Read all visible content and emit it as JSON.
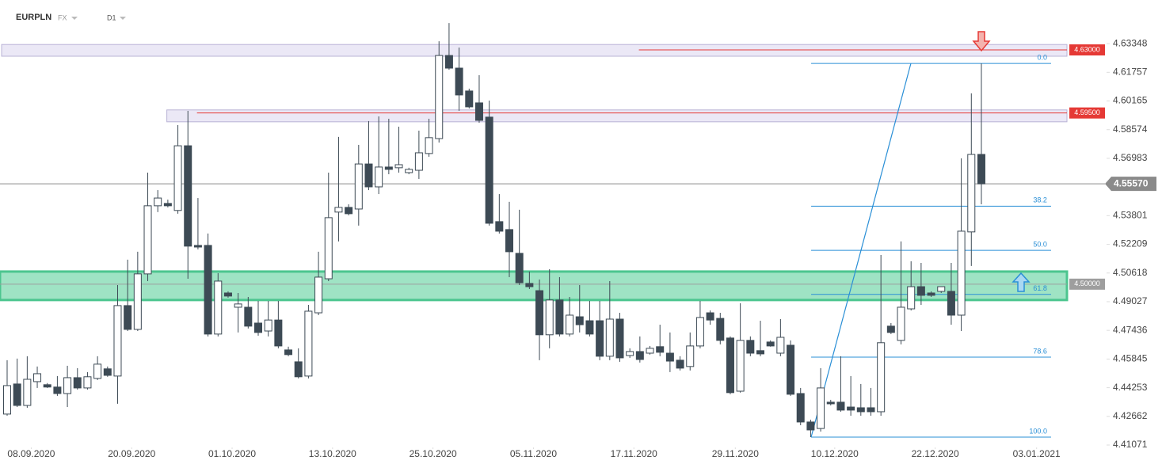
{
  "header": {
    "symbol": "EURPLN",
    "market": "FX",
    "interval": "D1"
  },
  "chart_data": {
    "type": "candlestick",
    "open": [
      4.4279,
      4.4446,
      4.4327,
      4.4459,
      4.4442,
      4.4429,
      4.4393,
      4.4481,
      4.4424,
      4.4477,
      4.453,
      4.449,
      4.4881,
      4.4749,
      4.5057,
      4.5435,
      4.5448,
      4.5409,
      4.5768,
      4.5215,
      4.5215,
      4.4723,
      4.4951,
      4.4872,
      4.4872,
      4.4784,
      4.474,
      4.4801,
      4.4635,
      4.4569,
      4.449,
      4.4841,
      4.503,
      4.54,
      4.5426,
      4.5417,
      4.5667,
      4.554,
      4.565,
      4.5646,
      4.5619,
      4.5632,
      4.5725,
      4.5808,
      4.6269,
      4.6199,
      4.6072,
      4.6006,
      4.5927,
      4.5347,
      4.5303,
      4.5171,
      4.5004,
      4.4964,
      4.4719,
      4.4912,
      4.4723,
      4.4819,
      4.4797,
      4.4797,
      4.46,
      4.4806,
      4.4604,
      4.4626,
      4.4617,
      4.4653,
      4.4617,
      4.4578,
      4.4543,
      4.4657,
      4.4841,
      4.481,
      4.4701,
      4.4406,
      4.4688,
      4.4631,
      4.4679,
      4.4617,
      4.4661,
      4.4393,
      4.4235,
      4.4199,
      4.4345,
      4.4345,
      4.4318,
      4.4314,
      4.4314,
      4.4292,
      4.4767,
      4.4688,
      4.4863,
      4.4986,
      4.4951,
      4.496,
      4.496,
      4.4828,
      4.529,
      4.572
    ],
    "high": [
      4.4578,
      4.4587,
      4.46,
      4.4543,
      4.4451,
      4.449,
      4.4547,
      4.4534,
      4.4512,
      4.46,
      4.4543,
      4.4995,
      4.5136,
      4.518,
      4.5619,
      4.5522,
      4.5469,
      4.5883,
      4.5962,
      4.5478,
      4.5281,
      4.5061,
      4.496,
      4.4951,
      4.4929,
      4.4907,
      4.4907,
      4.4907,
      4.4653,
      4.4644,
      4.4885,
      4.518,
      4.5619,
      4.5817,
      4.5443,
      4.5773,
      4.5905,
      4.5931,
      4.5918,
      4.5874,
      4.5646,
      4.5852,
      4.5918,
      4.6348,
      4.6449,
      4.6313,
      4.6085,
      4.616,
      4.6019,
      4.55,
      4.5457,
      4.5413,
      4.507,
      4.5026,
      4.5083,
      4.5039,
      4.4929,
      4.4995,
      4.4907,
      4.4907,
      4.5017,
      4.4841,
      4.4644,
      4.471,
      4.4657,
      4.4775,
      4.4732,
      4.46,
      4.4732,
      4.4907,
      4.4854,
      4.4841,
      4.471,
      4.4894,
      4.471,
      4.4797,
      4.4688,
      4.4806,
      4.4688,
      4.4424,
      4.4248,
      4.4534,
      4.4358,
      4.46,
      4.449,
      4.4446,
      4.4424,
      4.5162,
      4.4784,
      4.5237,
      4.5127,
      4.5118,
      4.496,
      4.4986,
      4.5118,
      4.5698,
      4.6059,
      4.6225
    ],
    "low": [
      4.427,
      4.4318,
      4.4314,
      4.4424,
      4.4424,
      4.438,
      4.4318,
      4.4415,
      4.4415,
      4.4468,
      4.4486,
      4.4336,
      4.474,
      4.474,
      4.5017,
      4.54,
      4.5426,
      4.5391,
      4.503,
      4.5193,
      4.471,
      4.471,
      4.4925,
      4.4732,
      4.4754,
      4.4714,
      4.471,
      4.4644,
      4.46,
      4.4477,
      4.4477,
      4.4828,
      4.5017,
      4.5237,
      4.5382,
      4.5325,
      4.5522,
      4.55,
      4.561,
      4.5619,
      4.561,
      4.5584,
      4.5707,
      4.5786,
      4.619,
      4.5962,
      4.5975,
      4.5896,
      4.5325,
      4.5281,
      4.5039,
      4.4995,
      4.4973,
      4.4578,
      4.4644,
      4.471,
      4.471,
      4.4732,
      4.471,
      4.4578,
      4.4578,
      4.4569,
      4.4591,
      4.4565,
      4.4609,
      4.46,
      4.4512,
      4.4521,
      4.4521,
      4.4644,
      4.4775,
      4.4666,
      4.4389,
      4.4398,
      4.46,
      4.46,
      4.4653,
      4.46,
      4.438,
      4.4217,
      4.4151,
      4.4182,
      4.4327,
      4.4292,
      4.427,
      4.427,
      4.427,
      4.427,
      4.4723,
      4.4666,
      4.4854,
      4.4885,
      4.4929,
      4.4951,
      4.4775,
      4.474,
      4.5101,
      4.5443
    ],
    "close": [
      4.4437,
      4.4327,
      4.4472,
      4.4503,
      4.4429,
      4.4393,
      4.4481,
      4.4424,
      4.4486,
      4.4556,
      4.4494,
      4.4881,
      4.4749,
      4.5057,
      4.5435,
      4.5478,
      4.5435,
      4.5768,
      4.5211,
      4.5206,
      4.4723,
      4.5017,
      4.4934,
      4.489,
      4.4767,
      4.4732,
      4.4801,
      4.4657,
      4.4609,
      4.4486,
      4.485,
      4.5039,
      4.5369,
      4.5426,
      4.5391,
      4.5667,
      4.554,
      4.565,
      4.5637,
      4.5663,
      4.5637,
      4.5729,
      4.5813,
      4.6269,
      4.6199,
      4.605,
      4.5984,
      4.5909,
      4.5338,
      4.5294,
      4.518,
      4.5008,
      4.4986,
      4.4719,
      4.4912,
      4.4723,
      4.4828,
      4.4775,
      4.4723,
      4.46,
      4.4806,
      4.4591,
      4.4626,
      4.4582,
      4.4644,
      4.4622,
      4.4573,
      4.4534,
      4.4657,
      4.4815,
      4.4801,
      4.4688,
      4.4398,
      4.4688,
      4.4617,
      4.4613,
      4.4657,
      4.4705,
      4.4389,
      4.4235,
      4.4191,
      4.4424,
      4.4336,
      4.4301,
      4.4301,
      4.4292,
      4.4292,
      4.4675,
      4.4732,
      4.4872,
      4.4986,
      4.4938,
      4.4938,
      4.4986,
      4.4828,
      4.5294,
      4.572,
      4.5557
    ],
    "bull_color": "#ffffff",
    "bear_color": "#3d4a55",
    "wick_color": "#3d4a55",
    "xlim": [
      -0.71,
      105.52
    ],
    "ylim": [
      4.4094,
      4.6577
    ],
    "xticks": [
      {
        "value": 2.4,
        "label": "08.09.2020"
      },
      {
        "value": 12.4,
        "label": "20.09.2020"
      },
      {
        "value": 22.4,
        "label": "01.10.2020"
      },
      {
        "value": 32.4,
        "label": "13.10.2020"
      },
      {
        "value": 42.4,
        "label": "25.10.2020"
      },
      {
        "value": 52.4,
        "label": "05.11.2020"
      },
      {
        "value": 62.4,
        "label": "17.11.2020"
      },
      {
        "value": 72.5,
        "label": "29.11.2020"
      },
      {
        "value": 82.4,
        "label": "10.12.2020"
      },
      {
        "value": 92.4,
        "label": "22.12.2020"
      },
      {
        "value": 102.5,
        "label": "03.01.2021"
      }
    ],
    "yticks": [
      4.63348,
      4.61757,
      4.60165,
      4.58574,
      4.56983,
      4.53801,
      4.52209,
      4.50618,
      4.49027,
      4.47436,
      4.45845,
      4.44253,
      4.42662,
      4.41071
    ],
    "zones": [
      {
        "from": -0.55,
        "top": 4.633,
        "bottom": 4.6265,
        "color": "#ebe8f6"
      },
      {
        "from": 15.9,
        "top": 4.5967,
        "bottom": 4.5901,
        "color": "#ebe8f6"
      },
      {
        "from": -0.71,
        "top": 4.507,
        "bottom": 4.4912,
        "color": "#9fe3c4"
      }
    ],
    "levels": [
      {
        "from": 62.9,
        "value": 4.63,
        "label": "4.63000",
        "color": "#e53935"
      },
      {
        "from": 18.9,
        "value": 4.595,
        "label": "4.59500",
        "color": "#e53935"
      },
      {
        "from": -0.71,
        "value": 4.5,
        "label": "4.50000",
        "color": "#9e9e9e"
      }
    ],
    "last_price": {
      "value": 4.5557,
      "label": "4.55570",
      "color": "#8a8a8a"
    },
    "fib": {
      "from": 80.05,
      "to": 103.94,
      "trend_to": 89.98,
      "color": "#2a8fd6",
      "levels": [
        {
          "value": 4.6225,
          "label": "0.0"
        },
        {
          "value": 4.5433,
          "label": "38.2"
        },
        {
          "value": 4.5188,
          "label": "50.0"
        },
        {
          "value": 4.4943,
          "label": "61.8"
        },
        {
          "value": 4.4595,
          "label": "78.6"
        },
        {
          "value": 4.4151,
          "label": "100.0"
        }
      ]
    }
  }
}
